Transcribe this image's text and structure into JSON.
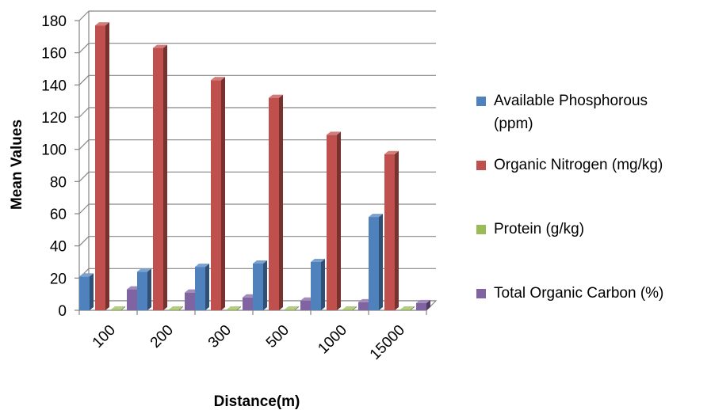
{
  "chart_data": {
    "type": "bar",
    "title": "",
    "xlabel": "Distance(m)",
    "ylabel": "Mean Values",
    "categories": [
      "100",
      "200",
      "300",
      "500",
      "1000",
      "15000"
    ],
    "ylim": [
      0,
      180
    ],
    "yticks": [
      "0",
      "20",
      "40",
      "60",
      "80",
      "100",
      "120",
      "140",
      "160",
      "180"
    ],
    "grid": true,
    "legend_position": "right",
    "series": [
      {
        "name": "Available Phosphorous (ppm)",
        "name_lines": [
          "Available Phosphorous",
          "(ppm)"
        ],
        "color": "#4F81BD",
        "values": [
          21,
          24,
          27,
          29,
          30,
          58
        ]
      },
      {
        "name": "Organic Nitrogen (mg/kg)",
        "name_lines": [
          "Organic Nitrogen (mg/kg)"
        ],
        "color": "#C0504D",
        "values": [
          177,
          163,
          143,
          132,
          109,
          97
        ]
      },
      {
        "name": "Protein (g/kg)",
        "name_lines": [
          "Protein (g/kg)"
        ],
        "color": "#9BBB59",
        "values": [
          0.5,
          0.5,
          0.5,
          0.5,
          0.5,
          0.5
        ]
      },
      {
        "name": "Total Organic Carbon (%)",
        "name_lines": [
          "Total Organic Carbon (%)"
        ],
        "color": "#8064A2",
        "values": [
          13,
          11,
          8,
          6,
          5,
          4.5
        ]
      }
    ]
  }
}
